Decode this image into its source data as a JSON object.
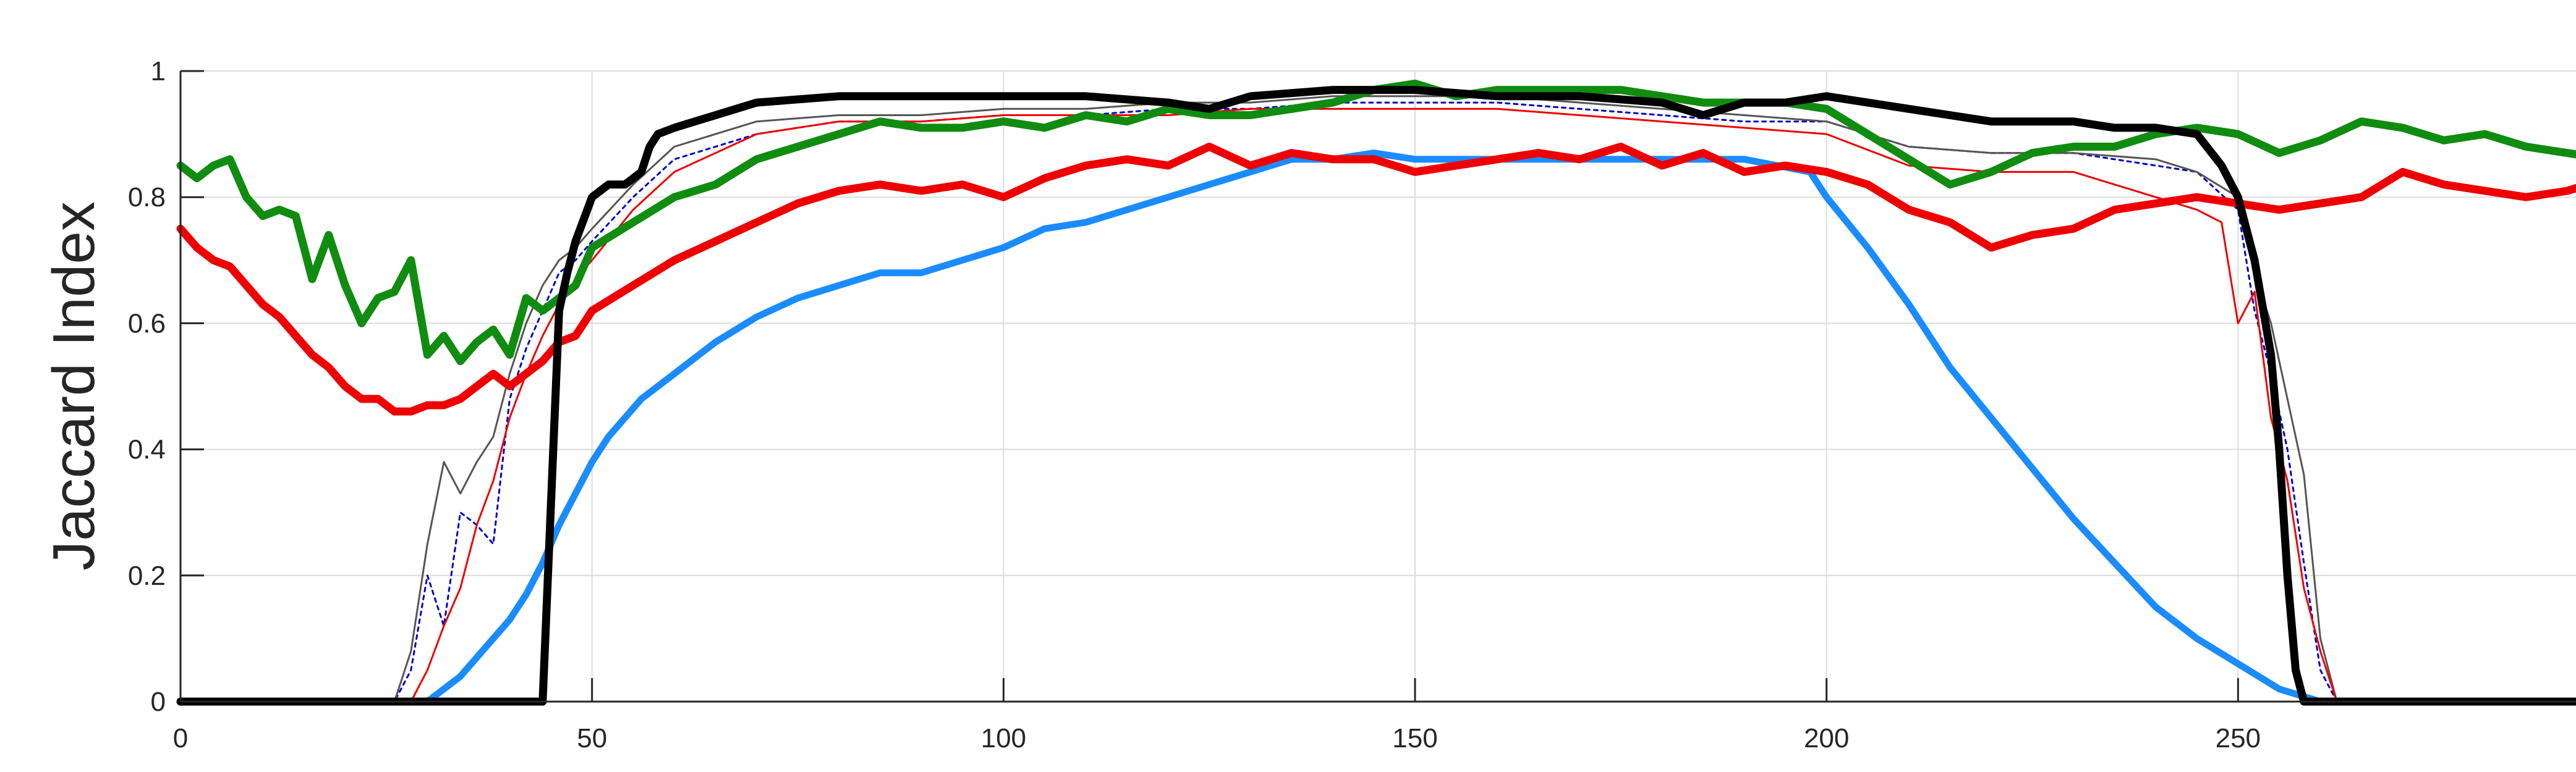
{
  "chart_data": {
    "type": "line",
    "title": "",
    "xlabel": "",
    "ylabel": "Jaccard Index",
    "xlim": [
      0,
      300
    ],
    "ylim": [
      0,
      1
    ],
    "xticks": [
      0,
      50,
      100,
      150,
      200,
      250
    ],
    "xtick_labels": [
      "0",
      "50",
      "100",
      "150",
      "200",
      "250"
    ],
    "yticks": [
      0,
      0.2,
      0.4,
      0.6,
      0.8,
      1
    ],
    "ytick_labels": [
      "0",
      "0.2",
      "0.4",
      "0.6",
      "0.8",
      "1"
    ],
    "grid": true,
    "legend": "none",
    "series": [
      {
        "color": "#0000cc",
        "style": "dotted",
        "width": "thin",
        "x": [
          0,
          26,
          28,
          30,
          32,
          34,
          36,
          38,
          40,
          42,
          44,
          46,
          48,
          50,
          55,
          60,
          70,
          80,
          90,
          100,
          110,
          120,
          130,
          140,
          150,
          160,
          170,
          180,
          190,
          200,
          210,
          220,
          230,
          240,
          245,
          250,
          252,
          254,
          256,
          258,
          260,
          262,
          300
        ],
        "y": [
          0,
          0,
          0.05,
          0.2,
          0.12,
          0.3,
          0.28,
          0.25,
          0.48,
          0.56,
          0.62,
          0.68,
          0.7,
          0.73,
          0.8,
          0.86,
          0.9,
          0.92,
          0.92,
          0.93,
          0.93,
          0.94,
          0.94,
          0.95,
          0.95,
          0.95,
          0.94,
          0.93,
          0.92,
          0.92,
          0.88,
          0.87,
          0.87,
          0.85,
          0.84,
          0.78,
          0.62,
          0.52,
          0.4,
          0.22,
          0.05,
          0,
          0
        ]
      },
      {
        "color": "#555555",
        "style": "solid",
        "width": "thin",
        "x": [
          0,
          26,
          28,
          30,
          32,
          34,
          36,
          38,
          40,
          42,
          44,
          46,
          48,
          50,
          55,
          60,
          70,
          80,
          90,
          100,
          110,
          120,
          130,
          140,
          150,
          160,
          170,
          180,
          190,
          200,
          210,
          220,
          230,
          240,
          245,
          250,
          252,
          254,
          256,
          258,
          260,
          262,
          300
        ],
        "y": [
          0,
          0,
          0.08,
          0.25,
          0.38,
          0.33,
          0.38,
          0.42,
          0.52,
          0.6,
          0.66,
          0.7,
          0.72,
          0.75,
          0.82,
          0.88,
          0.92,
          0.93,
          0.93,
          0.94,
          0.94,
          0.95,
          0.95,
          0.96,
          0.96,
          0.96,
          0.95,
          0.94,
          0.93,
          0.92,
          0.88,
          0.87,
          0.87,
          0.86,
          0.84,
          0.8,
          0.68,
          0.6,
          0.48,
          0.36,
          0.1,
          0,
          0
        ]
      },
      {
        "color": "#ee0000",
        "style": "solid",
        "width": "thin",
        "x": [
          0,
          28,
          30,
          32,
          34,
          36,
          38,
          40,
          42,
          44,
          46,
          48,
          50,
          55,
          60,
          70,
          80,
          90,
          100,
          110,
          120,
          130,
          140,
          150,
          160,
          170,
          180,
          190,
          200,
          210,
          220,
          230,
          240,
          245,
          248,
          250,
          252,
          254,
          256,
          258,
          260,
          262,
          300
        ],
        "y": [
          0,
          0,
          0.05,
          0.12,
          0.18,
          0.28,
          0.35,
          0.45,
          0.52,
          0.58,
          0.63,
          0.67,
          0.7,
          0.78,
          0.84,
          0.9,
          0.92,
          0.92,
          0.93,
          0.93,
          0.93,
          0.94,
          0.94,
          0.94,
          0.94,
          0.93,
          0.92,
          0.91,
          0.9,
          0.85,
          0.84,
          0.84,
          0.8,
          0.78,
          0.76,
          0.6,
          0.65,
          0.45,
          0.35,
          0.18,
          0.08,
          0,
          0
        ]
      },
      {
        "color": "#1a8cff",
        "style": "solid",
        "width": "medium",
        "x": [
          0,
          30,
          32,
          34,
          36,
          38,
          40,
          42,
          44,
          46,
          48,
          50,
          52,
          54,
          56,
          58,
          60,
          65,
          70,
          75,
          80,
          85,
          90,
          95,
          100,
          105,
          110,
          115,
          120,
          125,
          130,
          135,
          140,
          145,
          150,
          160,
          170,
          180,
          190,
          198,
          200,
          205,
          210,
          215,
          220,
          225,
          230,
          235,
          240,
          245,
          250,
          255,
          260,
          300
        ],
        "y": [
          0,
          0,
          0.02,
          0.04,
          0.07,
          0.1,
          0.13,
          0.17,
          0.22,
          0.28,
          0.33,
          0.38,
          0.42,
          0.45,
          0.48,
          0.5,
          0.52,
          0.57,
          0.61,
          0.64,
          0.66,
          0.68,
          0.68,
          0.7,
          0.72,
          0.75,
          0.76,
          0.78,
          0.8,
          0.82,
          0.84,
          0.86,
          0.86,
          0.87,
          0.86,
          0.86,
          0.86,
          0.86,
          0.86,
          0.84,
          0.8,
          0.72,
          0.63,
          0.53,
          0.45,
          0.37,
          0.29,
          0.22,
          0.15,
          0.1,
          0.06,
          0.02,
          0,
          0
        ]
      },
      {
        "color": "#ee0000",
        "style": "solid",
        "width": "thick",
        "x": [
          0,
          2,
          4,
          6,
          8,
          10,
          12,
          14,
          16,
          18,
          20,
          22,
          24,
          26,
          28,
          30,
          32,
          34,
          36,
          38,
          40,
          42,
          44,
          46,
          48,
          50,
          55,
          60,
          65,
          70,
          75,
          80,
          85,
          90,
          95,
          100,
          105,
          110,
          115,
          120,
          125,
          130,
          135,
          140,
          145,
          150,
          155,
          160,
          165,
          170,
          175,
          180,
          185,
          190,
          195,
          200,
          205,
          210,
          215,
          220,
          225,
          230,
          235,
          240,
          245,
          250,
          255,
          260,
          265,
          270,
          275,
          280,
          285,
          290,
          295,
          300
        ],
        "y": [
          0.75,
          0.72,
          0.7,
          0.69,
          0.66,
          0.63,
          0.61,
          0.58,
          0.55,
          0.53,
          0.5,
          0.48,
          0.48,
          0.46,
          0.46,
          0.47,
          0.47,
          0.48,
          0.5,
          0.52,
          0.5,
          0.52,
          0.54,
          0.57,
          0.58,
          0.62,
          0.66,
          0.7,
          0.73,
          0.76,
          0.79,
          0.81,
          0.82,
          0.81,
          0.82,
          0.8,
          0.83,
          0.85,
          0.86,
          0.85,
          0.88,
          0.85,
          0.87,
          0.86,
          0.86,
          0.84,
          0.85,
          0.86,
          0.87,
          0.86,
          0.88,
          0.85,
          0.87,
          0.84,
          0.85,
          0.84,
          0.82,
          0.78,
          0.76,
          0.72,
          0.74,
          0.75,
          0.78,
          0.79,
          0.8,
          0.79,
          0.78,
          0.79,
          0.8,
          0.84,
          0.82,
          0.81,
          0.8,
          0.81,
          0.83,
          0.82
        ]
      },
      {
        "color": "#108c10",
        "style": "solid",
        "width": "thick",
        "x": [
          0,
          2,
          4,
          6,
          8,
          10,
          12,
          14,
          16,
          18,
          20,
          22,
          24,
          26,
          28,
          30,
          32,
          34,
          36,
          38,
          40,
          42,
          44,
          46,
          48,
          50,
          55,
          60,
          65,
          70,
          75,
          80,
          85,
          90,
          95,
          100,
          105,
          110,
          115,
          120,
          125,
          130,
          135,
          140,
          145,
          150,
          155,
          160,
          165,
          170,
          175,
          180,
          185,
          190,
          195,
          200,
          205,
          210,
          215,
          220,
          225,
          230,
          235,
          240,
          245,
          250,
          255,
          260,
          265,
          270,
          275,
          280,
          285,
          290,
          295,
          300
        ],
        "y": [
          0.85,
          0.83,
          0.85,
          0.86,
          0.8,
          0.77,
          0.78,
          0.77,
          0.67,
          0.74,
          0.66,
          0.6,
          0.64,
          0.65,
          0.7,
          0.55,
          0.58,
          0.54,
          0.57,
          0.59,
          0.55,
          0.64,
          0.62,
          0.64,
          0.66,
          0.72,
          0.76,
          0.8,
          0.82,
          0.86,
          0.88,
          0.9,
          0.92,
          0.91,
          0.91,
          0.92,
          0.91,
          0.93,
          0.92,
          0.94,
          0.93,
          0.93,
          0.94,
          0.95,
          0.97,
          0.98,
          0.96,
          0.97,
          0.97,
          0.97,
          0.97,
          0.96,
          0.95,
          0.95,
          0.95,
          0.94,
          0.9,
          0.86,
          0.82,
          0.84,
          0.87,
          0.88,
          0.88,
          0.9,
          0.91,
          0.9,
          0.87,
          0.89,
          0.92,
          0.91,
          0.89,
          0.9,
          0.88,
          0.87,
          0.86,
          0.85
        ]
      },
      {
        "color": "#000000",
        "style": "solid",
        "width": "thick",
        "x": [
          0,
          44,
          46,
          47,
          48,
          50,
          52,
          54,
          56,
          57,
          58,
          60,
          65,
          70,
          80,
          90,
          100,
          110,
          120,
          125,
          130,
          140,
          150,
          160,
          170,
          180,
          185,
          190,
          195,
          200,
          205,
          210,
          215,
          220,
          225,
          230,
          235,
          240,
          245,
          248,
          250,
          252,
          254,
          255,
          256,
          257,
          258,
          300
        ],
        "y": [
          0,
          0,
          0.62,
          0.68,
          0.73,
          0.8,
          0.82,
          0.82,
          0.84,
          0.88,
          0.9,
          0.91,
          0.93,
          0.95,
          0.96,
          0.96,
          0.96,
          0.96,
          0.95,
          0.94,
          0.96,
          0.97,
          0.97,
          0.96,
          0.96,
          0.95,
          0.93,
          0.95,
          0.95,
          0.96,
          0.95,
          0.94,
          0.93,
          0.92,
          0.92,
          0.92,
          0.91,
          0.91,
          0.9,
          0.85,
          0.8,
          0.7,
          0.55,
          0.4,
          0.2,
          0.05,
          0,
          0
        ]
      }
    ]
  }
}
